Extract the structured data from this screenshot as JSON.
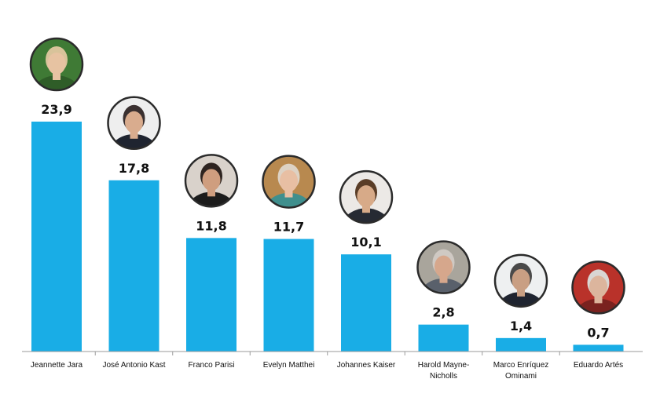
{
  "chart_data": {
    "type": "bar",
    "title": "",
    "xlabel": "",
    "ylabel": "",
    "ylim": [
      0,
      23.9
    ],
    "grid": false,
    "legend": "none",
    "bar_color": "#19ade6",
    "categories": [
      [
        "Jeannette Jara"
      ],
      [
        "José Antonio Kast"
      ],
      [
        "Franco Parisi"
      ],
      [
        "Evelyn Matthei"
      ],
      [
        "Johannes Kaiser"
      ],
      [
        "Harold Mayne-",
        "Nicholls"
      ],
      [
        "Marco Enríquez",
        "Ominami"
      ],
      [
        "Eduardo Artés"
      ]
    ],
    "values": [
      23.9,
      17.8,
      11.8,
      11.7,
      10.1,
      2.8,
      1.4,
      0.7
    ],
    "value_labels": [
      "23,9",
      "17,8",
      "11,8",
      "11,7",
      "10,1",
      "2,8",
      "1,4",
      "0,7"
    ],
    "avatar_icons": [
      "jeannette-jara-portrait-icon",
      "jose-antonio-kast-portrait-icon",
      "franco-parisi-portrait-icon",
      "evelyn-matthei-portrait-icon",
      "johannes-kaiser-portrait-icon",
      "harold-mayne-nicholls-portrait-icon",
      "marco-enriquez-ominami-portrait-icon",
      "eduardo-artes-portrait-icon"
    ],
    "avatar_colors": [
      {
        "bg": "#3f7a35",
        "hair": "#d8c39a",
        "skin": "#e7c3a2",
        "cloth": "#2f5d28"
      },
      {
        "bg": "#eeeeee",
        "hair": "#3a3030",
        "skin": "#d9ac8e",
        "cloth": "#1f2430"
      },
      {
        "bg": "#d9d2cb",
        "hair": "#2e2420",
        "skin": "#cf9e7f",
        "cloth": "#1c1c1c"
      },
      {
        "bg": "#b8894f",
        "hair": "#ddd2c4",
        "skin": "#e8bfa3",
        "cloth": "#3f8f8d"
      },
      {
        "bg": "#ece9e6",
        "hair": "#5a3d27",
        "skin": "#d7aa88",
        "cloth": "#262a33"
      },
      {
        "bg": "#a9a59c",
        "hair": "#cfc9c3",
        "skin": "#d6a78c",
        "cloth": "#59606b"
      },
      {
        "bg": "#eef0f1",
        "hair": "#4a4a4a",
        "skin": "#c99f83",
        "cloth": "#1f2430"
      },
      {
        "bg": "#b9322a",
        "hair": "#d9d6d3",
        "skin": "#dcb59d",
        "cloth": "#7a221f"
      }
    ]
  }
}
